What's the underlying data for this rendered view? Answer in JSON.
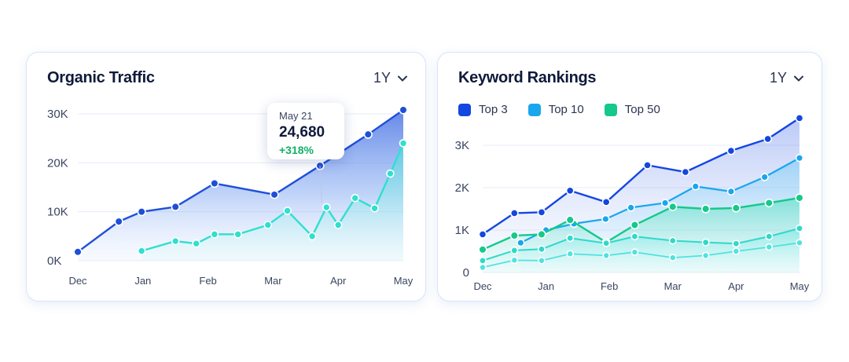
{
  "traffic_card": {
    "title": "Organic Traffic",
    "range": "1Y",
    "tooltip": {
      "date": "May 21",
      "value": "24,680",
      "change": "+318%"
    }
  },
  "keywords_card": {
    "title": "Keyword Rankings",
    "range": "1Y"
  },
  "colors": {
    "line_primary": "#1f4fd8",
    "line_secondary": "#2ee0cf",
    "top3": "#1446e0",
    "top10": "#1aa6ee",
    "top50": "#14c98a"
  },
  "icons": {
    "range_toggle": "chevron-down-icon"
  },
  "chart_data": [
    {
      "type": "area",
      "title": "Organic Traffic",
      "xlabel": "",
      "ylabel": "",
      "x_ticks": [
        "Dec",
        "Jan",
        "Feb",
        "Mar",
        "Apr",
        "May"
      ],
      "y_ticks": [
        "0K",
        "10K",
        "20K",
        "30K"
      ],
      "x_range": [
        0,
        5
      ],
      "ylim": [
        0,
        30000
      ],
      "grid": true,
      "series": [
        {
          "x": [
            0,
            0.63,
            0.98,
            1.5,
            2.1,
            3.02,
            3.72,
            4.46,
            5.0
          ],
          "values": [
            1800,
            8000,
            10000,
            11000,
            15800,
            13500,
            19400,
            25800,
            30800
          ]
        },
        {
          "x": [
            0.98,
            1.5,
            1.82,
            2.1,
            2.46,
            2.92,
            3.22,
            3.6,
            3.82,
            4.0,
            4.26,
            4.56,
            4.8,
            5.0
          ],
          "values": [
            2000,
            4000,
            3500,
            5400,
            5400,
            7300,
            10200,
            5000,
            10900,
            7300,
            12800,
            10700,
            17800,
            24000
          ]
        }
      ]
    },
    {
      "type": "area",
      "title": "Keyword Rankings",
      "xlabel": "",
      "ylabel": "",
      "x_ticks": [
        "Dec",
        "Jan",
        "Feb",
        "Mar",
        "Apr",
        "May"
      ],
      "y_ticks": [
        "0",
        "1K",
        "2K",
        "3K"
      ],
      "x_range": [
        0,
        5
      ],
      "ylim": [
        0,
        3000
      ],
      "grid": true,
      "legend": "top-left",
      "series": [
        {
          "name": "Top 3",
          "x": [
            0,
            0.5,
            0.93,
            1.38,
            1.95,
            2.6,
            3.2,
            3.92,
            4.5,
            5.0
          ],
          "values": [
            900,
            1400,
            1420,
            1930,
            1660,
            2530,
            2370,
            2870,
            3150,
            3640
          ]
        },
        {
          "name": "Top 10",
          "x": [
            0.6,
            1.0,
            1.44,
            1.94,
            2.34,
            2.88,
            3.36,
            3.92,
            4.45,
            5.0
          ],
          "values": [
            700,
            1000,
            1150,
            1260,
            1530,
            1640,
            2030,
            1910,
            2250,
            2700
          ]
        },
        {
          "name": "Top 50",
          "x": [
            0,
            0.5,
            0.93,
            1.38,
            1.95,
            2.4,
            3.0,
            3.52,
            4.0,
            4.52,
            5.0
          ],
          "values": [
            540,
            870,
            900,
            1240,
            710,
            1120,
            1550,
            1500,
            1520,
            1640,
            1760
          ]
        },
        {
          "x": [
            0,
            0.5,
            0.93,
            1.38,
            1.95,
            2.4,
            3.0,
            3.52,
            4.0,
            4.52,
            5.0
          ],
          "values": [
            280,
            520,
            550,
            810,
            690,
            850,
            750,
            710,
            680,
            850,
            1040
          ]
        },
        {
          "x": [
            0,
            0.5,
            0.93,
            1.38,
            1.95,
            2.4,
            3.0,
            3.52,
            4.0,
            4.52,
            5.0
          ],
          "values": [
            120,
            290,
            280,
            440,
            400,
            480,
            350,
            400,
            500,
            600,
            700
          ]
        }
      ]
    }
  ]
}
